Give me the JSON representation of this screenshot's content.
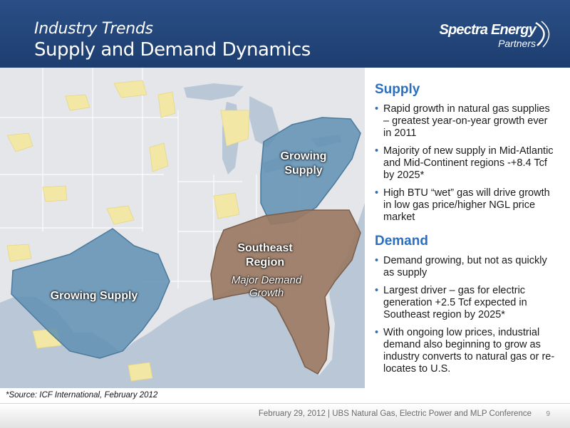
{
  "header": {
    "title": "Industry Trends",
    "subtitle": "Supply and Demand Dynamics"
  },
  "logo": {
    "name": "Spectra Energy",
    "sub": "Partners"
  },
  "map": {
    "labels": {
      "growing_supply_ne_line1": "Growing",
      "growing_supply_ne_line2": "Supply",
      "southeast_line1": "Southeast",
      "southeast_line2": "Region",
      "southeast_sub_line1": "Major Demand",
      "southeast_sub_line2": "Growth",
      "growing_supply_west": "Growing Supply"
    },
    "colors": {
      "water": "#b9c7d6",
      "land": "#e4e6e9",
      "supply_region": "#5f8fb3",
      "demand_region": "#9a7a63",
      "shale": "#f2e7a4"
    }
  },
  "supply": {
    "heading": "Supply",
    "bullets": [
      "Rapid growth in natural gas supplies – greatest year-on-year growth ever in 2011",
      "Majority of new supply in Mid-Atlantic and Mid-Continent regions -+8.4 Tcf by 2025*",
      "High BTU “wet” gas will drive growth in low gas price/higher NGL price market"
    ]
  },
  "demand": {
    "heading": "Demand",
    "bullets": [
      "Demand growing, but not as quickly as supply",
      "Largest driver – gas for electric generation +2.5 Tcf expected in Southeast region by 2025*",
      "With ongoing low prices, industrial demand also beginning to grow as industry converts to natural gas or re-locates to U.S."
    ]
  },
  "source_note": "*Source: ICF International, February 2012",
  "footer": {
    "text": "February 29, 2012  | UBS Natural Gas, Electric Power and MLP Conference",
    "page": "9"
  }
}
